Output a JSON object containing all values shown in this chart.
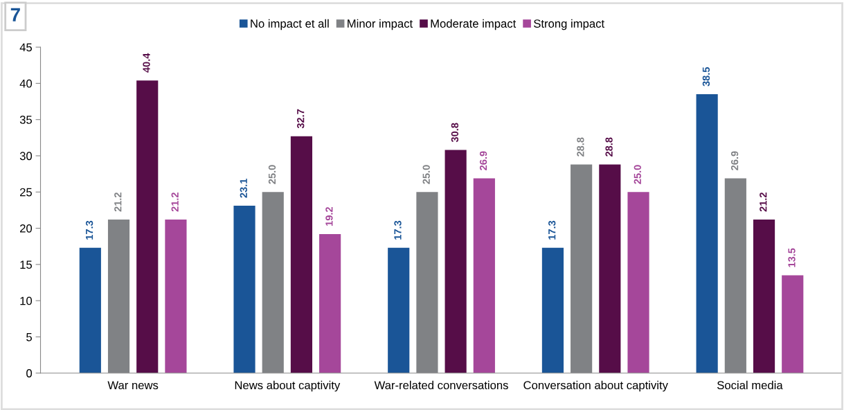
{
  "chart_data": {
    "type": "bar",
    "categories": [
      "War news",
      "News about captivity",
      "War-related conversations",
      "Conversation about captivity",
      "Social media"
    ],
    "series": [
      {
        "name": "No impact et all",
        "color": "#1a5597",
        "values": [
          17.3,
          23.1,
          17.3,
          17.3,
          38.5
        ],
        "value_labels": [
          "17.3",
          "23.1",
          "17.3",
          "17.3",
          "38.5"
        ]
      },
      {
        "name": "Minor impact",
        "color": "#808285",
        "values": [
          21.2,
          25,
          25,
          28.8,
          26.9
        ],
        "value_labels": [
          "21.2",
          "25.0",
          "25.0",
          "28.8",
          "26.9"
        ]
      },
      {
        "name": "Moderate impact",
        "color": "#560d48",
        "values": [
          40.4,
          32.7,
          30.8,
          28.8,
          21.2
        ],
        "value_labels": [
          "40.4",
          "32.7",
          "30.8",
          "28.8",
          "21.2"
        ]
      },
      {
        "name": "Strong impact",
        "color": "#a5479a",
        "values": [
          21.2,
          19.2,
          26.9,
          25,
          13.5
        ],
        "value_labels": [
          "21.2",
          "19.2",
          "26.9",
          "25.0",
          "13.5"
        ]
      }
    ],
    "ylim": [
      0,
      45
    ],
    "yticks": [
      0,
      5,
      10,
      15,
      20,
      25,
      30,
      35,
      40,
      45
    ],
    "grid": false,
    "legend": "top",
    "annotations": [
      "7"
    ]
  }
}
